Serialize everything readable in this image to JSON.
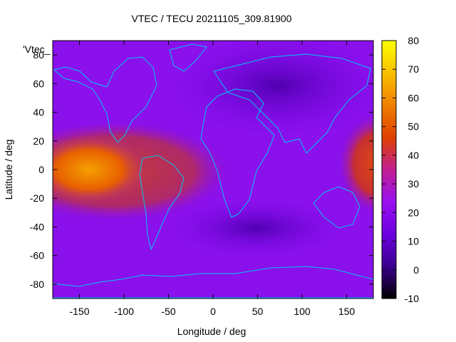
{
  "chart_data": {
    "type": "heatmap",
    "title": "VTEC / TECU 20211105_309.81900",
    "xlabel": "Longitude / deg",
    "ylabel": "Latitude / deg",
    "key_label": "'Vtec_",
    "xlim": [
      -180,
      180
    ],
    "ylim": [
      -90,
      90
    ],
    "x_ticks": [
      -150,
      -100,
      -50,
      0,
      50,
      100,
      150
    ],
    "y_ticks": [
      -80,
      -60,
      -40,
      -20,
      0,
      20,
      40,
      60,
      80
    ],
    "colorbar": {
      "range": [
        -10,
        80
      ],
      "ticks": [
        -10,
        0,
        10,
        20,
        30,
        40,
        50,
        60,
        70,
        80
      ],
      "palette": [
        "#000000",
        "#3a008e",
        "#6b00e0",
        "#9a10f0",
        "#c0208f",
        "#de4000",
        "#f08000",
        "#f8c000",
        "#ffff00"
      ]
    },
    "vtec_regions": [
      {
        "lon": [
          -180,
          -60
        ],
        "lat": [
          -25,
          25
        ],
        "value": 45
      },
      {
        "lon": [
          -175,
          -110
        ],
        "lat": [
          -15,
          15
        ],
        "value": 55
      },
      {
        "lon": [
          140,
          180
        ],
        "lat": [
          -25,
          25
        ],
        "value": 40
      },
      {
        "lon": [
          -180,
          180
        ],
        "lat": [
          -90,
          90
        ],
        "value": 15
      }
    ],
    "grid": false,
    "legend": "top-left"
  }
}
